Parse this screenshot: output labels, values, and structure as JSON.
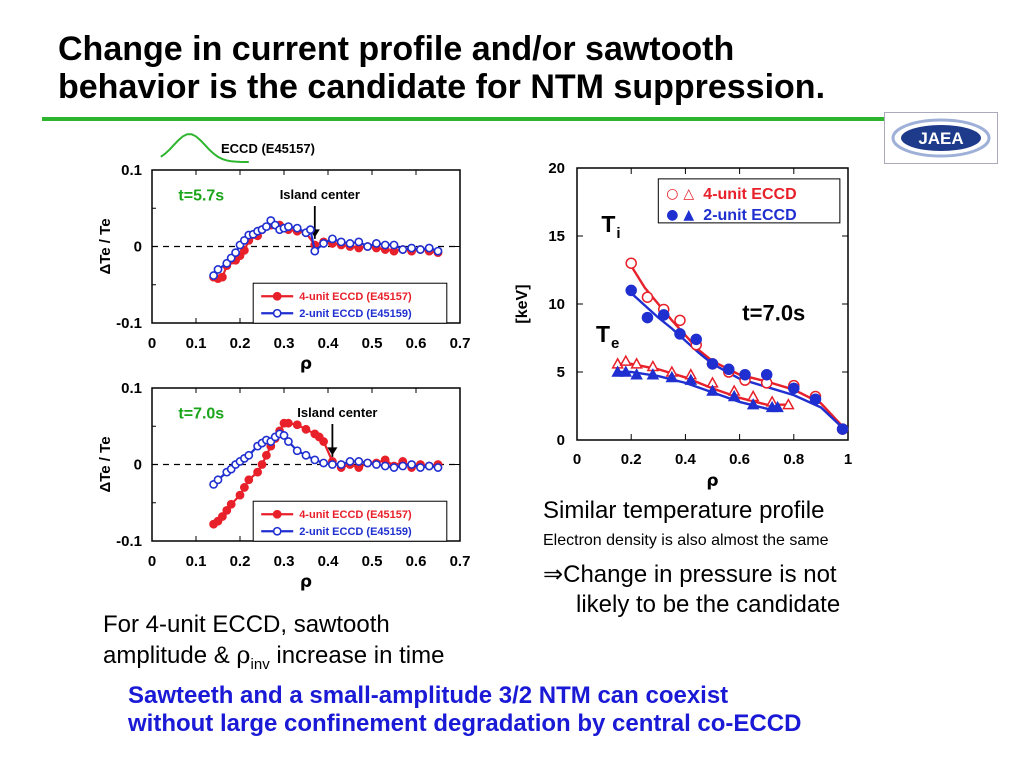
{
  "slide": {
    "title_line1": "Change in current profile and/or sawtooth",
    "title_line2": "behavior is the candidate for NTM suppression.",
    "logo_text": "JAEA",
    "accent_color": "#2db52d",
    "note_similar": "Similar temperature profile",
    "note_density": "Electron density is also almost the same",
    "note_pressure_arrow": "⇒",
    "note_pressure_1": "Change in pressure is not",
    "note_pressure_2": "likely to be the candidate",
    "note_sawtooth_1": "For 4-unit ECCD, sawtooth",
    "note_sawtooth_2a": "amplitude & ",
    "note_sawtooth_rho": "ρ",
    "note_sawtooth_sub": "inv",
    "note_sawtooth_2b": " increase in time",
    "conclusion_1": "Sawteeth and a small-amplitude 3/2 NTM can coexist",
    "conclusion_2": "without large confinement degradation by central co-ECCD"
  },
  "chart_data": [
    {
      "type": "line",
      "ylabel": "ΔTe / Te",
      "xlabel": "ρ",
      "xlim": [
        0,
        0.7
      ],
      "ylim": [
        -0.1,
        0.1
      ],
      "xticks": [
        "0",
        "0.1",
        "0.2",
        "0.3",
        "0.4",
        "0.5",
        "0.6",
        "0.7"
      ],
      "yticks": [
        "0.1",
        "0",
        "-0.1"
      ],
      "time_label": "t=5.7s",
      "arrow_label": "Island center",
      "arrow_x": 0.37,
      "eccd_label": "ECCD (E45157)",
      "series": [
        {
          "name": "4-unit ECCD (E45157)",
          "color": "#e8202a",
          "marker": "filled-circle",
          "x": [
            0.14,
            0.15,
            0.16,
            0.17,
            0.18,
            0.19,
            0.2,
            0.21,
            0.22,
            0.24,
            0.25,
            0.27,
            0.29,
            0.31,
            0.33,
            0.35,
            0.37,
            0.39,
            0.41,
            0.43,
            0.45,
            0.47,
            0.49,
            0.51,
            0.53,
            0.55,
            0.57,
            0.59,
            0.61,
            0.63,
            0.65
          ],
          "y": [
            -0.04,
            -0.042,
            -0.04,
            -0.025,
            -0.018,
            -0.018,
            -0.012,
            -0.005,
            0.008,
            0.014,
            0.022,
            0.028,
            0.028,
            0.022,
            0.02,
            0.018,
            0.002,
            0.006,
            0.004,
            0.002,
            0.0,
            -0.002,
            0.0,
            -0.002,
            -0.004,
            -0.006,
            -0.004,
            -0.006,
            -0.004,
            -0.006,
            -0.008
          ]
        },
        {
          "name": "2-unit ECCD (E45159)",
          "color": "#1f2fd0",
          "marker": "open-circle",
          "x": [
            0.14,
            0.15,
            0.17,
            0.18,
            0.19,
            0.2,
            0.21,
            0.22,
            0.23,
            0.24,
            0.25,
            0.26,
            0.27,
            0.28,
            0.29,
            0.3,
            0.31,
            0.33,
            0.35,
            0.36,
            0.37,
            0.39,
            0.41,
            0.43,
            0.45,
            0.47,
            0.49,
            0.51,
            0.53,
            0.55,
            0.57,
            0.59,
            0.61,
            0.63,
            0.65
          ],
          "y": [
            -0.038,
            -0.03,
            -0.022,
            -0.015,
            -0.008,
            0.002,
            0.008,
            0.015,
            0.016,
            0.02,
            0.022,
            0.026,
            0.034,
            0.028,
            0.022,
            0.024,
            0.026,
            0.024,
            0.018,
            0.022,
            -0.006,
            0.004,
            0.01,
            0.006,
            0.004,
            0.006,
            0.0,
            0.004,
            0.002,
            0.002,
            -0.004,
            -0.002,
            -0.004,
            -0.002,
            -0.006
          ]
        }
      ]
    },
    {
      "type": "line",
      "ylabel": "ΔTe / Te",
      "xlabel": "ρ",
      "xlim": [
        0,
        0.7
      ],
      "ylim": [
        -0.1,
        0.1
      ],
      "xticks": [
        "0",
        "0.1",
        "0.2",
        "0.3",
        "0.4",
        "0.5",
        "0.6",
        "0.7"
      ],
      "yticks": [
        "0.1",
        "0",
        "-0.1"
      ],
      "time_label": "t=7.0s",
      "arrow_label": "Island center",
      "arrow_x": 0.41,
      "series": [
        {
          "name": "4-unit ECCD (E45157)",
          "color": "#e8202a",
          "marker": "filled-circle",
          "x": [
            0.14,
            0.15,
            0.16,
            0.17,
            0.18,
            0.2,
            0.21,
            0.22,
            0.24,
            0.25,
            0.26,
            0.27,
            0.28,
            0.29,
            0.3,
            0.31,
            0.33,
            0.35,
            0.37,
            0.38,
            0.39,
            0.41,
            0.43,
            0.45,
            0.47,
            0.49,
            0.51,
            0.53,
            0.55,
            0.57,
            0.59,
            0.61,
            0.63,
            0.65
          ],
          "y": [
            -0.078,
            -0.074,
            -0.068,
            -0.06,
            -0.052,
            -0.04,
            -0.03,
            -0.02,
            -0.01,
            0.0,
            0.012,
            0.024,
            0.034,
            0.044,
            0.054,
            0.054,
            0.052,
            0.046,
            0.04,
            0.036,
            0.03,
            0.004,
            -0.004,
            0.0,
            -0.004,
            0.002,
            0.002,
            0.006,
            -0.002,
            0.004,
            -0.004,
            0.0,
            -0.002,
            0.0
          ]
        },
        {
          "name": "2-unit ECCD (E45159)",
          "color": "#1f2fd0",
          "marker": "open-circle",
          "x": [
            0.14,
            0.15,
            0.17,
            0.18,
            0.19,
            0.2,
            0.21,
            0.22,
            0.24,
            0.25,
            0.26,
            0.27,
            0.28,
            0.29,
            0.3,
            0.31,
            0.33,
            0.35,
            0.37,
            0.39,
            0.41,
            0.43,
            0.45,
            0.47,
            0.49,
            0.51,
            0.53,
            0.55,
            0.57,
            0.59,
            0.61,
            0.63,
            0.65
          ],
          "y": [
            -0.026,
            -0.02,
            -0.01,
            -0.006,
            0.0,
            0.004,
            0.008,
            0.012,
            0.024,
            0.028,
            0.032,
            0.03,
            0.036,
            0.04,
            0.038,
            0.03,
            0.018,
            0.012,
            0.006,
            0.002,
            0.0,
            0.0,
            0.004,
            0.004,
            0.002,
            0.0,
            -0.002,
            -0.004,
            -0.002,
            0.0,
            -0.004,
            -0.002,
            -0.004
          ]
        }
      ]
    },
    {
      "type": "scatter",
      "ylabel": "[keV]",
      "xlabel": "ρ",
      "xlim": [
        0,
        1
      ],
      "ylim": [
        0,
        20
      ],
      "xticks": [
        "0",
        "0.2",
        "0.4",
        "0.6",
        "0.8",
        "1"
      ],
      "yticks": [
        "0",
        "5",
        "10",
        "15",
        "20"
      ],
      "annotation": "t=7.0s",
      "ti_label": "T",
      "ti_sub": "i",
      "te_label": "T",
      "te_sub": "e",
      "legend_placement": "top-right",
      "legend": [
        {
          "symbols": "○ △",
          "label": "4-unit ECCD",
          "color": "#e8202a"
        },
        {
          "symbols": "● ▲",
          "label": "2-unit ECCD",
          "color": "#1f2fd0"
        }
      ],
      "series": [
        {
          "name": "Ti 4-unit",
          "color": "#e8202a",
          "marker": "open-circle",
          "x": [
            0.2,
            0.26,
            0.32,
            0.38,
            0.44,
            0.5,
            0.56,
            0.62,
            0.7,
            0.8,
            0.88,
            0.98
          ],
          "y": [
            13.0,
            10.5,
            9.6,
            8.8,
            7.0,
            5.6,
            5.0,
            4.4,
            4.2,
            4.0,
            3.2,
            0.8
          ],
          "fit_x": [
            0.2,
            0.25,
            0.3,
            0.35,
            0.4,
            0.45,
            0.5,
            0.6,
            0.7,
            0.8,
            0.9,
            0.98
          ],
          "fit_y": [
            12.8,
            11.2,
            10.0,
            8.8,
            7.7,
            6.6,
            5.8,
            4.8,
            4.3,
            3.7,
            2.7,
            1.0
          ]
        },
        {
          "name": "Ti 2-unit",
          "color": "#1f2fd0",
          "marker": "filled-circle",
          "x": [
            0.2,
            0.26,
            0.32,
            0.38,
            0.44,
            0.5,
            0.56,
            0.62,
            0.7,
            0.8,
            0.88,
            0.98
          ],
          "y": [
            11.0,
            9.0,
            9.2,
            7.8,
            7.4,
            5.6,
            5.2,
            4.8,
            4.8,
            3.8,
            3.0,
            0.8
          ],
          "fit_x": [
            0.2,
            0.25,
            0.3,
            0.35,
            0.4,
            0.45,
            0.5,
            0.6,
            0.7,
            0.8,
            0.9,
            0.98
          ],
          "fit_y": [
            10.8,
            9.9,
            9.0,
            8.2,
            7.3,
            6.4,
            5.6,
            4.5,
            3.9,
            3.3,
            2.4,
            0.9
          ]
        },
        {
          "name": "Te 4-unit",
          "color": "#e8202a",
          "marker": "open-triangle",
          "x": [
            0.15,
            0.18,
            0.22,
            0.28,
            0.35,
            0.42,
            0.5,
            0.58,
            0.65,
            0.72,
            0.78
          ],
          "y": [
            5.6,
            5.8,
            5.6,
            5.4,
            5.0,
            4.8,
            4.2,
            3.6,
            3.2,
            2.8,
            2.6
          ],
          "fit_x": [
            0.15,
            0.2,
            0.3,
            0.4,
            0.5,
            0.6,
            0.7,
            0.78
          ],
          "fit_y": [
            5.6,
            5.6,
            5.2,
            4.6,
            3.8,
            3.1,
            2.6,
            2.6
          ]
        },
        {
          "name": "Te 2-unit",
          "color": "#1f2fd0",
          "marker": "filled-triangle",
          "x": [
            0.15,
            0.18,
            0.22,
            0.28,
            0.35,
            0.42,
            0.5,
            0.58,
            0.65,
            0.72,
            0.74
          ],
          "y": [
            5.0,
            5.0,
            4.8,
            4.8,
            4.6,
            4.4,
            3.6,
            3.2,
            2.6,
            2.4,
            2.4
          ],
          "fit_x": [
            0.15,
            0.2,
            0.3,
            0.4,
            0.5,
            0.6,
            0.7,
            0.75
          ],
          "fit_y": [
            5.0,
            5.0,
            4.7,
            4.2,
            3.5,
            2.8,
            2.3,
            2.2
          ]
        }
      ]
    }
  ]
}
